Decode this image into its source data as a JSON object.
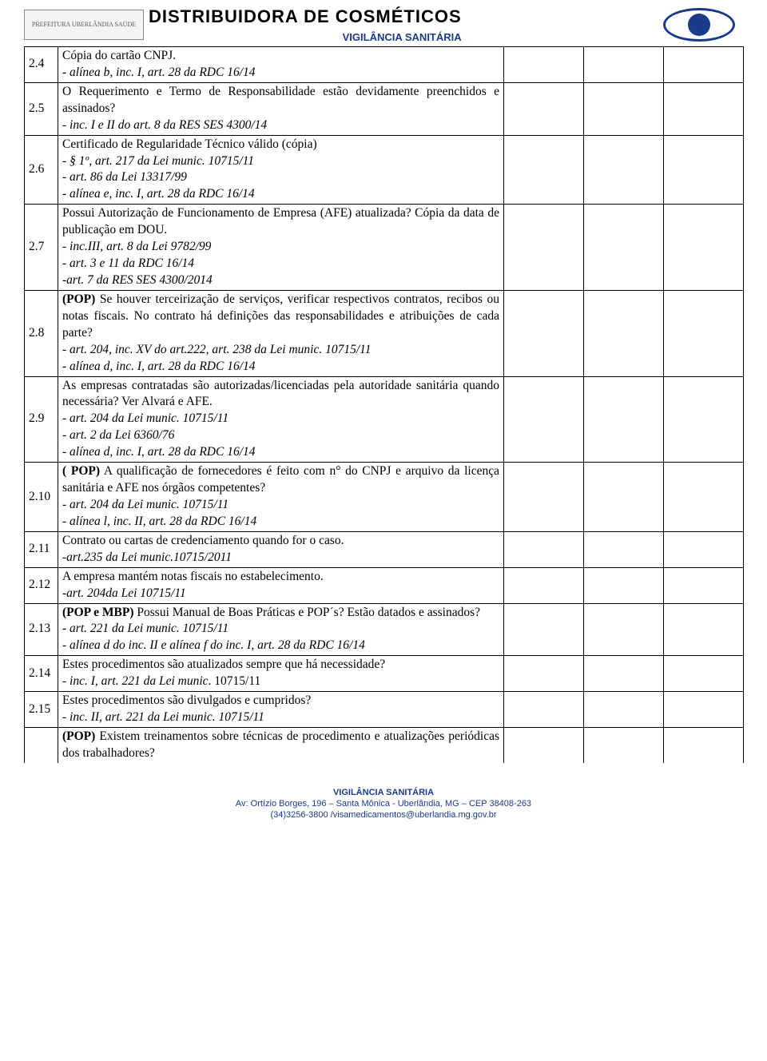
{
  "header": {
    "title_main": "DISTRIBUIDORA DE  COSMÉTICOS",
    "title_sub": "VIGILÂNCIA SANITÁRIA",
    "logo_left_alt": "PREFEITURA UBERLÂNDIA SAÚDE",
    "logo_right_alt": "VS"
  },
  "rows": [
    {
      "num": "2.4",
      "texts": [
        {
          "t": "Cópia do cartão CNPJ."
        },
        {
          "t": "- alínea b, inc. I, art. 28 da RDC 16/14",
          "italic": true
        }
      ]
    },
    {
      "num": "2.5",
      "texts": [
        {
          "t": "O Requerimento e Termo de Responsabilidade estão devidamente preenchidos e assinados?"
        },
        {
          "t": "- inc. I e II do art. 8 da RES SES 4300/14",
          "italic": true
        }
      ]
    },
    {
      "num": "2.6",
      "texts": [
        {
          "t": "Certificado de Regularidade Técnico válido (cópia)"
        },
        {
          "t": "- § 1º, art. 217 da Lei munic. 10715/11",
          "italic": true
        },
        {
          "t": "- art. 86 da Lei 13317/99",
          "italic": true
        },
        {
          "t": "- alínea e, inc. I, art. 28 da RDC 16/14",
          "italic": true
        }
      ]
    },
    {
      "num": "2.7",
      "texts": [
        {
          "t": "Possui Autorização de Funcionamento de Empresa (AFE) atualizada? Cópia da data de publicação em DOU."
        },
        {
          "t": "- inc.III, art. 8 da Lei 9782/99",
          "italic": true
        },
        {
          "t": "- art. 3 e 11 da RDC 16/14",
          "italic": true
        },
        {
          "t": "-art. 7 da RES SES 4300/2014",
          "italic": true
        }
      ]
    },
    {
      "num": "2.8",
      "texts": [
        {
          "t": "(POP) Se houver terceirização de serviços, verificar respectivos contratos, recibos ou notas fiscais. No contrato há definições das responsabilidades e atribuições de cada parte?",
          "boldprefix": "(POP)"
        },
        {
          "t": "- art. 204, inc. XV do art.222, art. 238 da Lei munic. 10715/11",
          "italic": true
        },
        {
          "t": "- alínea d, inc. I, art. 28 da RDC 16/14",
          "italic": true
        }
      ]
    },
    {
      "num": "2.9",
      "texts": [
        {
          "t": "As empresas contratadas são autorizadas/licenciadas pela autoridade sanitária quando necessária? Ver Alvará e AFE."
        },
        {
          "t": "- art. 204 da Lei munic. 10715/11",
          "italic": true
        },
        {
          "t": "- art. 2 da Lei 6360/76",
          "italic": true
        },
        {
          "t": "- alínea d, inc. I, art. 28 da RDC 16/14",
          "italic": true
        }
      ]
    },
    {
      "num": "2.10",
      "texts": [
        {
          "t": "( POP) A qualificação de fornecedores é feito com n° do CNPJ e arquivo da licença sanitária e AFE nos órgãos competentes?",
          "boldprefix": "( POP)"
        },
        {
          "t": "- art. 204 da Lei munic. 10715/11",
          "italic": true
        },
        {
          "t": "- alínea l, inc. II, art. 28 da RDC 16/14",
          "italic": true
        }
      ]
    },
    {
      "num": "2.11",
      "texts": [
        {
          "t": "Contrato ou cartas de credenciamento quando for o caso."
        },
        {
          "t": "-art.235 da Lei munic.10715/2011",
          "italic": true
        }
      ]
    },
    {
      "num": "2.12",
      "texts": [
        {
          "t": "A empresa mantém notas fiscais no estabelecimento."
        },
        {
          "t": "-art. 204da Lei 10715/11",
          "italic": true
        }
      ]
    },
    {
      "num": "2.13",
      "texts": [
        {
          "t": "(POP e MBP) Possui Manual de Boas Práticas e POP´s? Estão datados e assinados?",
          "boldprefix": "(POP e MBP)"
        },
        {
          "t": "- art. 221 da Lei munic. 10715/11",
          "italic": true
        },
        {
          "t": "- alínea d do inc. II e alínea f  do inc. I, art. 28 da RDC 16/14",
          "italic": true
        }
      ]
    },
    {
      "num": "2.14",
      "texts": [
        {
          "t": "Estes procedimentos são atualizados sempre que há necessidade?"
        },
        {
          "t": "- inc. I, art. 221 da Lei munic. 10715/11",
          "mixed": true,
          "italic_part": "- inc. I, art. 221 da Lei munic",
          "plain_part": ". 10715/11"
        }
      ]
    },
    {
      "num": "2.15",
      "texts": [
        {
          "t": "Estes procedimentos são divulgados e cumpridos?"
        },
        {
          "t": "- inc. II, art. 221 da Lei munic. 10715/11",
          "italic": true
        }
      ]
    },
    {
      "num": "",
      "lastopen": true,
      "texts": [
        {
          "t": "(POP) Existem treinamentos sobre técnicas de procedimento e atualizações periódicas dos trabalhadores?",
          "boldprefix": "(POP)"
        }
      ]
    }
  ],
  "footer": {
    "line1": "VIGILÂNCIA SANITÁRIA",
    "line2": "Av: Ortízio Borges, 196 – Santa Mônica - Uberlândia, MG – CEP 38408-263",
    "line3": "(34)3256-3800 /visamedicamentos@uberlandia.mg.gov.br"
  },
  "colors": {
    "border": "#000000",
    "accent": "#1a3a8a",
    "bg": "#ffffff"
  }
}
